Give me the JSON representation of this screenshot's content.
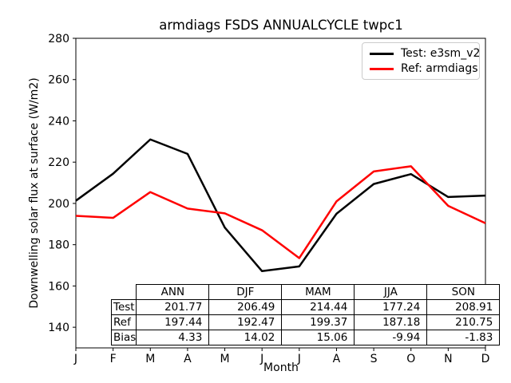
{
  "chart_data": {
    "type": "line",
    "title": "armdiags FSDS ANNUALCYCLE twpc1",
    "xlabel": "Month",
    "ylabel": "Downwelling solar flux at surface (W/m2)",
    "x_ticklabels": [
      "J",
      "F",
      "M",
      "A",
      "M",
      "J",
      "J",
      "A",
      "S",
      "O",
      "N",
      "D"
    ],
    "y_ticks": [
      140,
      160,
      180,
      200,
      220,
      240,
      260,
      280
    ],
    "ylim": [
      130,
      280
    ],
    "grid": false,
    "legend_position": "upper right",
    "series": [
      {
        "name": "Test: e3sm_v2",
        "color": "#000000",
        "values": [
          201.3,
          214.4,
          231.0,
          224.0,
          188.3,
          167.2,
          169.5,
          195.0,
          209.4,
          214.2,
          203.1,
          203.8
        ]
      },
      {
        "name": "Ref: armdiags",
        "color": "#ff0000",
        "values": [
          194.0,
          193.0,
          205.5,
          197.5,
          195.2,
          187.0,
          173.5,
          201.0,
          215.5,
          218.0,
          198.8,
          190.4
        ]
      }
    ]
  },
  "table": {
    "col_headers": [
      "ANN",
      "DJF",
      "MAM",
      "JJA",
      "SON"
    ],
    "rows": [
      {
        "label": "Test",
        "values": [
          "201.77",
          "206.49",
          "214.44",
          "177.24",
          "208.91"
        ]
      },
      {
        "label": "Ref",
        "values": [
          "197.44",
          "192.47",
          "199.37",
          "187.18",
          "210.75"
        ]
      },
      {
        "label": "Bias",
        "values": [
          "4.33",
          "14.02",
          "15.06",
          "-9.94",
          "-1.83"
        ]
      }
    ]
  }
}
